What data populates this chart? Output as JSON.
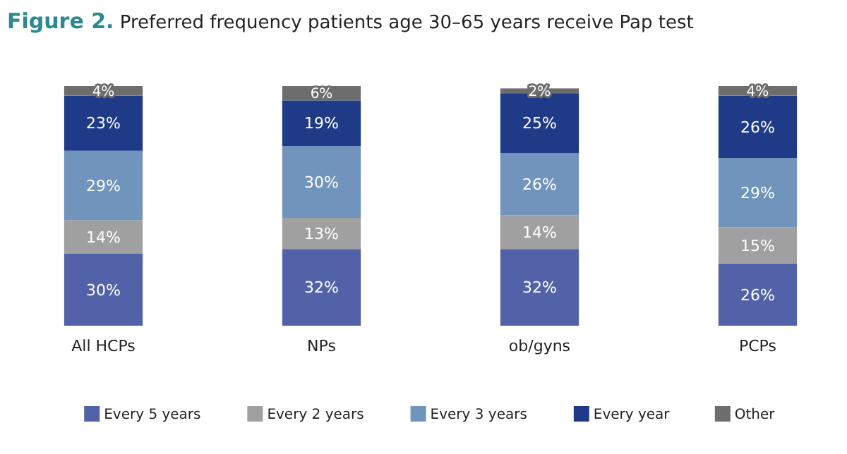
{
  "chart_data": {
    "type": "bar",
    "title": "Figure 2. Preferred frequency patients age 30–65 years receive Pap test",
    "categories": [
      "All HCPs",
      "NPs",
      "ob/gyns",
      "PCPs"
    ],
    "stacked": true,
    "legend": "bottom",
    "series": [
      {
        "name": "Every 5 years",
        "color": "#5162a8",
        "values": [
          30,
          32,
          32,
          26
        ],
        "value_labels": [
          "30%",
          "32%",
          "32%",
          "26%"
        ]
      },
      {
        "name": "Every 2 years",
        "color": "#a0a0a0",
        "values": [
          14,
          13,
          14,
          15
        ],
        "value_labels": [
          "14%",
          "13%",
          "14%",
          "15%"
        ]
      },
      {
        "name": "Every 3 years",
        "color": "#7094bb",
        "values": [
          29,
          30,
          26,
          29
        ],
        "value_labels": [
          "29%",
          "30%",
          "26%",
          "29%"
        ]
      },
      {
        "name": "Every year",
        "color": "#1f3a87",
        "values": [
          23,
          19,
          25,
          26
        ],
        "value_labels": [
          "23%",
          "19%",
          "25%",
          "26%"
        ]
      },
      {
        "name": "Other",
        "color": "#6d6d6d",
        "values": [
          4,
          6,
          2,
          4
        ],
        "value_labels": [
          "4%",
          "6%",
          "2%",
          "4%"
        ]
      }
    ]
  }
}
